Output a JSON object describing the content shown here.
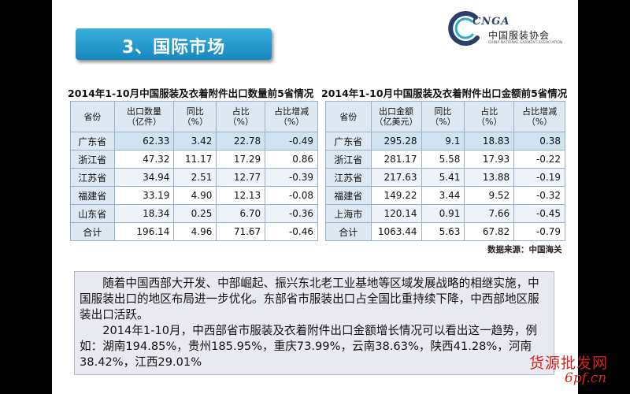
{
  "section_title": "3、国际市场",
  "logo": {
    "abbr": "CNGA",
    "cn_name": "中国服装协会",
    "en_name": "CHINA NATIONAL GARMENT ASSOCIATION"
  },
  "table_left": {
    "title": "2014年1-10月中国服装及衣着附件出口数量前5省情况",
    "headers": [
      "省份",
      "出口数量\n（亿件）",
      "同比\n（%）",
      "占比\n（%）",
      "占比增减\n（%）"
    ],
    "rows": [
      [
        "广东省",
        "62.33",
        "3.42",
        "22.78",
        "-0.49"
      ],
      [
        "浙江省",
        "47.32",
        "11.17",
        "17.29",
        "0.86"
      ],
      [
        "江苏省",
        "34.94",
        "2.51",
        "12.77",
        "-0.39"
      ],
      [
        "福建省",
        "33.19",
        "4.90",
        "12.13",
        "-0.08"
      ],
      [
        "山东省",
        "18.34",
        "0.25",
        "6.70",
        "-0.36"
      ],
      [
        "合计",
        "196.14",
        "4.96",
        "71.67",
        "-0.46"
      ]
    ]
  },
  "table_right": {
    "title": "2014年1-10月中国服装及衣着附件出口金额前5省情况",
    "headers": [
      "省份",
      "出口金额\n（亿美元）",
      "同比\n（%）",
      "占比\n（%）",
      "占比增减\n（%）"
    ],
    "rows": [
      [
        "广东省",
        "295.28",
        "9.1",
        "18.83",
        "0.38"
      ],
      [
        "浙江省",
        "281.17",
        "5.58",
        "17.93",
        "-0.22"
      ],
      [
        "江苏省",
        "217.63",
        "5.41",
        "13.88",
        "-0.19"
      ],
      [
        "福建省",
        "149.22",
        "3.44",
        "9.52",
        "-0.32"
      ],
      [
        "上海市",
        "120.14",
        "0.91",
        "7.66",
        "-0.45"
      ],
      [
        "合计",
        "1063.44",
        "5.63",
        "67.82",
        "-0.79"
      ]
    ],
    "source": "数据来源：中国海关"
  },
  "paragraphs": [
    "随着中国西部大开发、中部崛起、振兴东北老工业基地等区域发展战略的相继实施，中国服装出口的地区布局进一步优化。东部省市服装出口占全国比重持续下降，中西部地区服装出口活跃。",
    "2014年1-10月，中西部省市服装及衣着附件出口金额增长情况可以看出这一趋势，例如：湖南194.85%，贵州185.95%，重庆73.99%，云南38.63%，陕西41.28%，河南38.42%，江西29.01%"
  ],
  "watermark": {
    "line1": "货源批发网",
    "line2": "6pf.cn"
  },
  "colors": {
    "title_bar": "#1787bf",
    "header_fill": "#dde8f3",
    "note_fill": "#e9eaf1",
    "watermark": "#d7231b"
  }
}
